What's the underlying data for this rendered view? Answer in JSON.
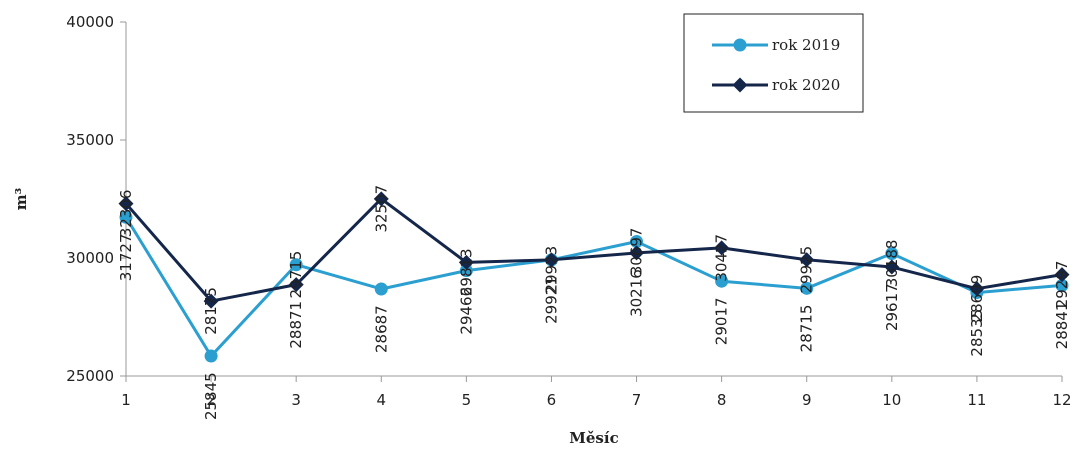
{
  "chart_data": {
    "type": "line",
    "xlabel": "Měsíc",
    "ylabel": "m³",
    "x": [
      1,
      2,
      3,
      4,
      5,
      6,
      7,
      8,
      9,
      10,
      11,
      12
    ],
    "xticks": [
      "1",
      "2",
      "3",
      "4",
      "5",
      "6",
      "7",
      "8",
      "9",
      "10",
      "11",
      "12"
    ],
    "ylim": [
      25000,
      40000
    ],
    "yticks": [
      "25000",
      "30000",
      "35000",
      "40000"
    ],
    "grid": false,
    "legend_position": "top-right",
    "series": [
      {
        "name": "rok 2019",
        "color": "#2b9fd0",
        "marker": "circle",
        "values": [
          31727,
          25845,
          29715,
          28687,
          29466,
          29921,
          30697,
          29017,
          28715,
          30188,
          28535,
          28841
        ],
        "labels": [
          "31727",
          "25845",
          "29715",
          "28687",
          "29466",
          "29921",
          "30697",
          "29017",
          "28715",
          "30188",
          "28535",
          "28841"
        ]
      },
      {
        "name": "rok 2020",
        "color": "#14264a",
        "marker": "diamond",
        "values": [
          32306,
          28175,
          28871,
          32507,
          29813,
          29923,
          30216,
          30427,
          29925,
          29617,
          28699,
          29297
        ],
        "labels": [
          "32306",
          "28175",
          "28871",
          "32507",
          "29813",
          "29923",
          "30216",
          "30427",
          "29925",
          "29617",
          "28699",
          "29297"
        ]
      }
    ]
  }
}
